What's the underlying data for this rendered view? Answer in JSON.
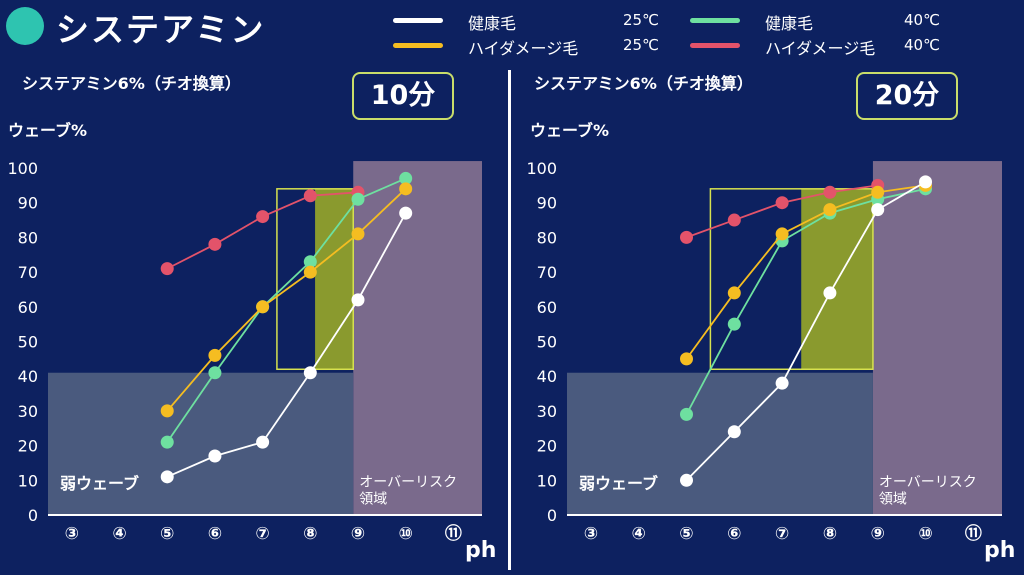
{
  "title": "システアミン",
  "colors": {
    "background": "#0d2160",
    "title_dot": "#2ec4b0",
    "box_border": "#d7e24f",
    "box_fill": "#8a9a2e",
    "weak_zone": "#4a5a7e",
    "over_zone": "#7a6a8c"
  },
  "legend": [
    {
      "label": "健康毛",
      "temp": "25℃",
      "color": "#ffffff"
    },
    {
      "label": "ハイダメージ毛",
      "temp": "25℃",
      "color": "#f5bd21"
    },
    {
      "label": "健康毛",
      "temp": "40℃",
      "color": "#6ee0a0"
    },
    {
      "label": "ハイダメージ毛",
      "temp": "40℃",
      "color": "#e3536a"
    }
  ],
  "charts": [
    {
      "subtitle": "システアミン6%（チオ換算）",
      "time": "10分",
      "ylabel": "ウェーブ%",
      "xlabel": "ph",
      "weak_label": "弱ウェーブ",
      "over_label_1": "オーバーリスク",
      "over_label_2": "領域"
    },
    {
      "subtitle": "システアミン6%（チオ換算）",
      "time": "20分",
      "ylabel": "ウェーブ%",
      "xlabel": "ph",
      "weak_label": "弱ウェーブ",
      "over_label_1": "オーバーリスク",
      "over_label_2": "領域"
    }
  ],
  "chart_data": [
    {
      "type": "line",
      "x_ticks": [
        "③",
        "④",
        "⑤",
        "⑥",
        "⑦",
        "⑧",
        "⑨",
        "⑩",
        "⑪"
      ],
      "x_values": [
        3,
        4,
        5,
        6,
        7,
        8,
        9,
        10,
        11
      ],
      "y_ticks": [
        0,
        10,
        20,
        30,
        40,
        50,
        60,
        70,
        80,
        90,
        100
      ],
      "ylim": [
        0,
        100
      ],
      "xlim": [
        2.5,
        11.6
      ],
      "ylabel": "ウェーブ%",
      "xlabel": "ph",
      "regions": {
        "weak_wave": {
          "x": [
            2.5,
            8.9
          ],
          "y": [
            0,
            41
          ]
        },
        "over_risk": {
          "x": [
            8.9,
            11.6
          ],
          "y": [
            0,
            102
          ]
        },
        "target_box": {
          "x": [
            7.3,
            8.9
          ],
          "y": [
            42,
            94
          ]
        },
        "target_box_fill": {
          "x": [
            8.1,
            8.9
          ],
          "y": [
            42,
            94
          ]
        }
      },
      "series": [
        {
          "name": "ハイダメージ毛 40℃",
          "color": "#e3536a",
          "x": [
            5,
            6,
            7,
            8,
            9
          ],
          "y": [
            71,
            78,
            86,
            92,
            93
          ]
        },
        {
          "name": "健康毛 40℃",
          "color": "#6ee0a0",
          "x": [
            5,
            6,
            7,
            8,
            9,
            10
          ],
          "y": [
            21,
            41,
            60,
            73,
            91,
            97
          ]
        },
        {
          "name": "ハイダメージ毛 25℃",
          "color": "#f5bd21",
          "x": [
            5,
            6,
            7,
            8,
            9,
            10
          ],
          "y": [
            30,
            46,
            60,
            70,
            81,
            94
          ]
        },
        {
          "name": "健康毛 25℃",
          "color": "#ffffff",
          "x": [
            5,
            6,
            7,
            8,
            9,
            10
          ],
          "y": [
            11,
            17,
            21,
            41,
            62,
            87
          ]
        }
      ]
    },
    {
      "type": "line",
      "x_ticks": [
        "③",
        "④",
        "⑤",
        "⑥",
        "⑦",
        "⑧",
        "⑨",
        "⑩",
        "⑪"
      ],
      "x_values": [
        3,
        4,
        5,
        6,
        7,
        8,
        9,
        10,
        11
      ],
      "y_ticks": [
        0,
        10,
        20,
        30,
        40,
        50,
        60,
        70,
        80,
        90,
        100
      ],
      "ylim": [
        0,
        100
      ],
      "xlim": [
        2.5,
        11.6
      ],
      "ylabel": "ウェーブ%",
      "xlabel": "ph",
      "regions": {
        "weak_wave": {
          "x": [
            2.5,
            8.9
          ],
          "y": [
            0,
            41
          ]
        },
        "over_risk": {
          "x": [
            8.9,
            11.6
          ],
          "y": [
            0,
            102
          ]
        },
        "target_box": {
          "x": [
            5.5,
            8.9
          ],
          "y": [
            42,
            94
          ]
        },
        "target_box_fill": {
          "x": [
            7.4,
            8.9
          ],
          "y": [
            42,
            94
          ]
        }
      },
      "series": [
        {
          "name": "ハイダメージ毛 40℃",
          "color": "#e3536a",
          "x": [
            5,
            6,
            7,
            8,
            9
          ],
          "y": [
            80,
            85,
            90,
            93,
            95
          ]
        },
        {
          "name": "健康毛 40℃",
          "color": "#6ee0a0",
          "x": [
            5,
            6,
            7,
            8,
            9,
            10
          ],
          "y": [
            29,
            55,
            79,
            87,
            91,
            94
          ]
        },
        {
          "name": "ハイダメージ毛 25℃",
          "color": "#f5bd21",
          "x": [
            5,
            6,
            7,
            8,
            9,
            10
          ],
          "y": [
            45,
            64,
            81,
            88,
            93,
            95
          ]
        },
        {
          "name": "健康毛 25℃",
          "color": "#ffffff",
          "x": [
            5,
            6,
            7,
            8,
            9,
            10
          ],
          "y": [
            10,
            24,
            38,
            64,
            88,
            96
          ]
        }
      ]
    }
  ]
}
